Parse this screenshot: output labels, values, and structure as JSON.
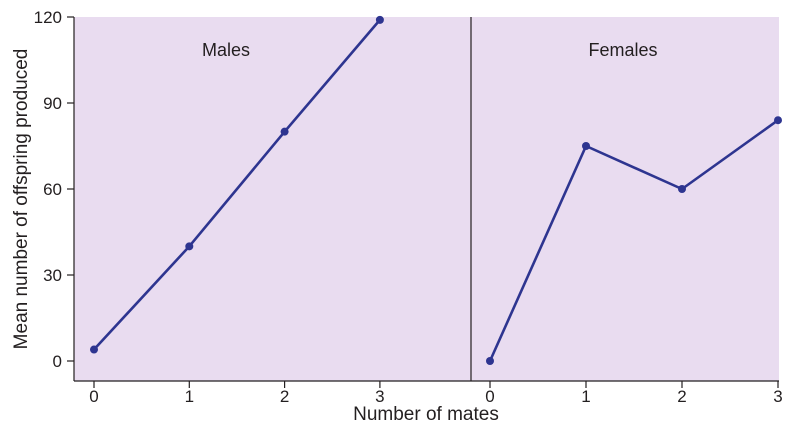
{
  "chart_data": {
    "type": "line",
    "xlabel": "Number of mates",
    "ylabel": "Mean number of offspring produced",
    "ylim": [
      0,
      120
    ],
    "yticks": [
      0,
      30,
      60,
      90,
      120
    ],
    "x": [
      0,
      1,
      2,
      3
    ],
    "grid": false,
    "colors": {
      "panel_background": "#e9dcf0",
      "line": "#2e3590"
    },
    "panels": [
      {
        "name": "Males",
        "series": [
          {
            "x": [
              0,
              1,
              2,
              3
            ],
            "values": [
              4,
              40,
              80,
              119
            ]
          }
        ]
      },
      {
        "name": "Females",
        "series": [
          {
            "x": [
              0,
              1,
              2,
              3
            ],
            "values": [
              0,
              75,
              60,
              84
            ]
          }
        ]
      }
    ]
  }
}
